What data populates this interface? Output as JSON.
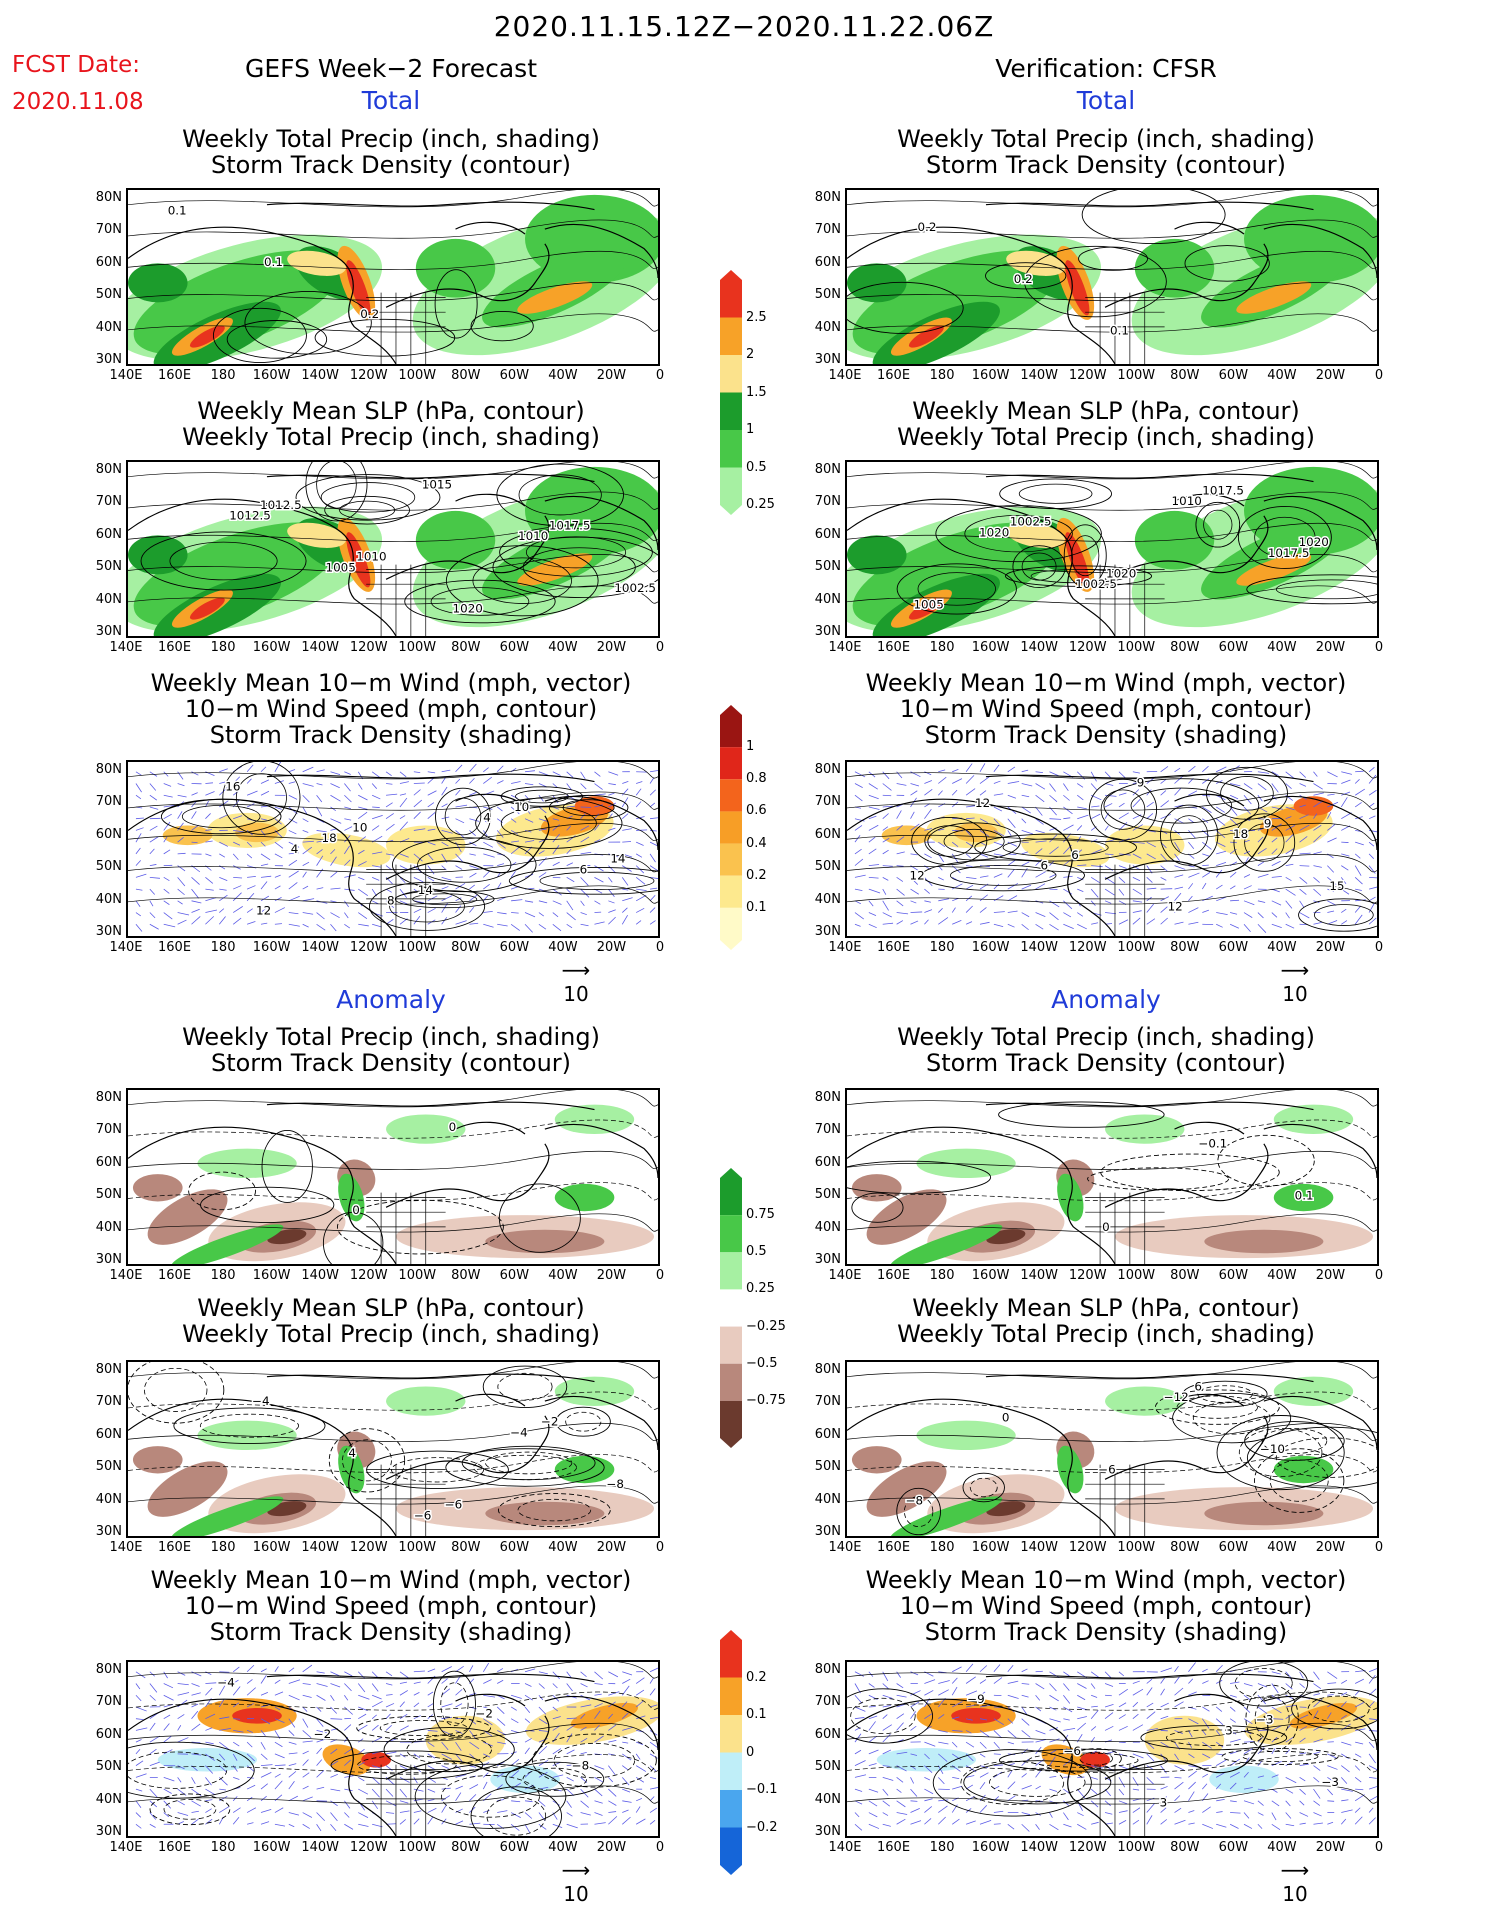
{
  "header": {
    "date_range": "2020.11.15.12Z−2020.11.22.06Z",
    "fcst_label": "FCST Date:",
    "fcst_date": "2020.11.08",
    "left_title": "GEFS Week−2 Forecast",
    "right_title": "Verification: CFSR"
  },
  "sections": {
    "total": "Total",
    "anomaly": "Anomaly"
  },
  "panel_titles": {
    "precip_track": [
      "Weekly Total Precip (inch, shading)",
      "Storm Track Density (contour)"
    ],
    "slp_precip": [
      "Weekly Mean SLP (hPa, contour)",
      "Weekly Total Precip (inch, shading)"
    ],
    "wind": [
      "Weekly Mean 10−m Wind (mph, vector)",
      "10−m Wind Speed (mph, contour)",
      "Storm Track Density (shading)"
    ]
  },
  "axes": {
    "lat_labels": [
      "80N",
      "70N",
      "60N",
      "50N",
      "40N",
      "30N"
    ],
    "lon_labels": [
      "140E",
      "160E",
      "180",
      "160W",
      "140W",
      "120W",
      "100W",
      "80W",
      "60W",
      "40W",
      "20W",
      "0"
    ]
  },
  "vector_ref": "10",
  "colorbars": {
    "precip_total": {
      "labels": [
        "2.5",
        "2",
        "1.5",
        "1",
        "0.5",
        "0.25"
      ],
      "colors": [
        "#e8331e",
        "#f7a228",
        "#fbe28c",
        "#1c9c2c",
        "#48c848",
        "#a6f0a2"
      ]
    },
    "storm_total": {
      "labels": [
        "1",
        "0.8",
        "0.6",
        "0.4",
        "0.2",
        "0.1"
      ],
      "colors": [
        "#9a1512",
        "#e0261a",
        "#f3641c",
        "#f79e26",
        "#fac24e",
        "#fde98e",
        "#fffac8"
      ]
    },
    "precip_anom": {
      "labels": [
        "0.75",
        "0.5",
        "0.25",
        "−0.25",
        "−0.5",
        "−0.75"
      ],
      "colors": [
        "#1c9c2c",
        "#48c848",
        "#a6f0a2",
        "#ffffff",
        "#e8cbbf",
        "#b8887c",
        "#6b3a2e"
      ]
    },
    "storm_anom": {
      "labels": [
        "0.2",
        "0.1",
        "0",
        "−0.1",
        "−0.2"
      ],
      "colors": [
        "#e8331e",
        "#f7a228",
        "#fbe28c",
        "#bfeef8",
        "#4aa6ee",
        "#1565d8"
      ]
    }
  },
  "contour_labels": {
    "left_precip_total": [
      "0.1",
      "0.1",
      "0.2"
    ],
    "right_precip_total": [
      "0.2",
      "0.2",
      "0.1"
    ],
    "left_slp_total": [
      "1012.5",
      "1005",
      "1015",
      "1010",
      "1002.5",
      "1012.5",
      "1010",
      "1020",
      "1017.5"
    ],
    "right_slp_total": [
      "1020",
      "1002.5",
      "1010",
      "1017.5",
      "1005",
      "1002.5",
      "1020",
      "1017.5",
      "1020"
    ],
    "left_wind_total": [
      "4",
      "8",
      "4",
      "6",
      "16",
      "18",
      "14",
      "10",
      "14",
      "12",
      "10"
    ],
    "right_wind_total": [
      "6",
      "9",
      "18",
      "15",
      "12",
      "6",
      "12",
      "9",
      "12"
    ],
    "left_precip_anom": [
      "0",
      "0"
    ],
    "right_precip_anom": [
      "0",
      "−0.1",
      "0.1"
    ],
    "left_slp_anom": [
      "−6",
      "−4",
      "−8",
      "−4",
      "4",
      "−6",
      "−2"
    ],
    "right_slp_anom": [
      "−12",
      "−10",
      "−8",
      "0",
      "−6",
      "6"
    ],
    "left_wind_anom": [
      "−2",
      "−8",
      "−4",
      "−2"
    ],
    "right_wind_anom": [
      "3",
      "−3",
      "−9",
      "−6",
      "3",
      "−3"
    ]
  }
}
